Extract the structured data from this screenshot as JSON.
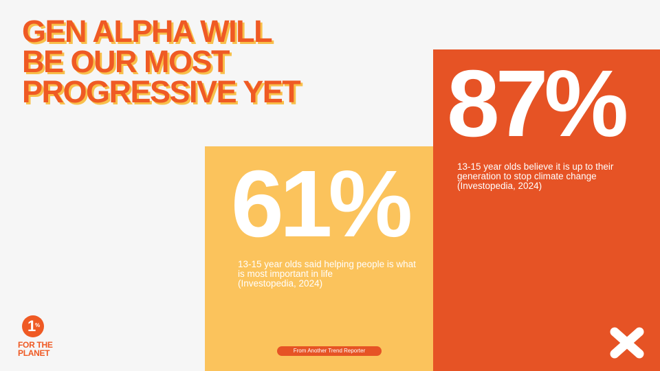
{
  "title": {
    "lines": [
      "GEN ALPHA WILL",
      "BE OUR MOST",
      "PROGRESSIVE YET"
    ]
  },
  "stats": [
    {
      "value": "61%",
      "description": "13-15 year olds said helping people is what is most important in life",
      "source": "(Investopedia, 2024)"
    },
    {
      "value": "87%",
      "description": "13-15 year olds believe it is up to their generation to stop climate change",
      "source": "(Investopedia, 2024)"
    }
  ],
  "footer": {
    "credit": "From Another Trend Reporter"
  },
  "logo": {
    "number": "1",
    "symbol": "%",
    "lines": [
      "FOR THE",
      "PLANET"
    ]
  }
}
